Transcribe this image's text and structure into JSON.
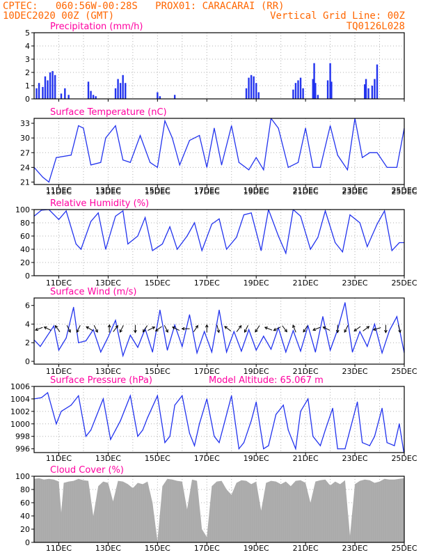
{
  "header": {
    "line1_left": "CPTEC:   060:56W-00:28S   PROX01: CARACARAI (RR)",
    "line2_left": "10DEC2020 00Z (GMT)",
    "line2_right": "Vertical Grid Line: 00Z",
    "line3_right": "TQ0126L028"
  },
  "x_axis": {
    "tick_labels": [
      "11DEC",
      "13DEC",
      "15DEC",
      "17DEC",
      "19DEC",
      "21DEC",
      "23DEC",
      "25DEC"
    ],
    "tick_days": [
      1,
      3,
      5,
      7,
      9,
      11,
      13,
      15
    ],
    "range_days": [
      0,
      15
    ]
  },
  "colors": {
    "series": "#2233ee",
    "cloud_fill": "#aaaaaa",
    "title": "#ff00a0",
    "header": "#ff6600",
    "arrow": "#000000"
  },
  "chart_data": [
    {
      "type": "bar",
      "title": "Precipitation (mm/h)",
      "ylim": [
        0,
        5
      ],
      "yticks": [
        0,
        1,
        2,
        3,
        4,
        5
      ],
      "grid": true,
      "x_days": [
        0.1,
        0.2,
        0.35,
        0.45,
        0.55,
        0.65,
        0.75,
        0.85,
        1.1,
        1.25,
        1.4,
        2.2,
        2.3,
        2.4,
        2.5,
        3.3,
        3.4,
        3.5,
        3.6,
        3.7,
        5.0,
        5.1,
        5.7,
        8.6,
        8.7,
        8.8,
        8.9,
        9.0,
        9.1,
        10.5,
        10.6,
        10.7,
        10.8,
        10.9,
        11.3,
        11.35,
        11.4,
        11.5,
        11.9,
        12.0,
        12.05,
        13.4,
        13.45,
        13.55,
        13.7,
        13.8,
        13.9
      ],
      "values": [
        0.8,
        1.2,
        0.9,
        1.7,
        1.4,
        2.0,
        2.1,
        1.8,
        0.4,
        0.8,
        0.3,
        1.3,
        0.6,
        0.3,
        0.2,
        0.8,
        1.5,
        1.2,
        1.8,
        1.2,
        0.5,
        0.2,
        0.3,
        0.8,
        1.6,
        1.8,
        1.7,
        1.2,
        0.5,
        0.7,
        1.2,
        1.4,
        1.6,
        0.8,
        1.5,
        2.7,
        1.2,
        0.3,
        1.4,
        2.7,
        1.3,
        1.1,
        1.5,
        0.8,
        1.0,
        1.5,
        2.6
      ]
    },
    {
      "type": "line",
      "title": "Surface Temperature (nC)",
      "ylim": [
        20.5,
        34
      ],
      "yticks": [
        21,
        24,
        27,
        30,
        33
      ],
      "grid": true,
      "x_days": [
        0,
        0.35,
        0.6,
        0.9,
        1.5,
        1.8,
        2.0,
        2.3,
        2.7,
        2.9,
        3.3,
        3.6,
        3.9,
        4.3,
        4.7,
        5.0,
        5.3,
        5.6,
        5.9,
        6.3,
        6.7,
        7.0,
        7.3,
        7.6,
        8.0,
        8.3,
        8.7,
        9.0,
        9.3,
        9.6,
        9.9,
        10.3,
        10.7,
        11.0,
        11.3,
        11.6,
        12.0,
        12.3,
        12.7,
        13.0,
        13.3,
        13.6,
        13.9,
        14.3,
        14.7,
        15.0
      ],
      "values": [
        24,
        22,
        21,
        26,
        26.5,
        32.5,
        32,
        24.5,
        25,
        30,
        32.5,
        25.5,
        25,
        30.5,
        25,
        24,
        33.5,
        30,
        24.5,
        29.5,
        30.5,
        24,
        32,
        24.5,
        32.5,
        25,
        23.5,
        26,
        23.5,
        34,
        32,
        24,
        25,
        32,
        24,
        24,
        32.5,
        26.5,
        23.5,
        34,
        26,
        27,
        27,
        24,
        24,
        32
      ]
    },
    {
      "type": "line",
      "title": "Relative Humidity (%)",
      "ylim": [
        0,
        100
      ],
      "yticks": [
        0,
        20,
        40,
        60,
        80,
        100
      ],
      "grid": true,
      "x_days": [
        0,
        0.3,
        0.6,
        1.0,
        1.3,
        1.7,
        1.9,
        2.3,
        2.6,
        2.9,
        3.3,
        3.6,
        3.8,
        4.2,
        4.5,
        4.8,
        5.2,
        5.5,
        5.8,
        6.2,
        6.5,
        6.8,
        7.2,
        7.5,
        7.8,
        8.2,
        8.5,
        8.8,
        9.2,
        9.5,
        9.9,
        10.2,
        10.5,
        10.8,
        11.2,
        11.5,
        11.8,
        12.2,
        12.5,
        12.8,
        13.2,
        13.5,
        13.9,
        14.2,
        14.5,
        14.8,
        15.0
      ],
      "values": [
        90,
        99,
        100,
        85,
        98,
        48,
        40,
        82,
        95,
        40,
        90,
        98,
        48,
        60,
        88,
        38,
        48,
        74,
        40,
        60,
        80,
        38,
        78,
        86,
        40,
        58,
        92,
        95,
        38,
        100,
        60,
        34,
        100,
        90,
        40,
        58,
        98,
        50,
        36,
        92,
        80,
        44,
        78,
        98,
        38,
        50,
        50
      ]
    },
    {
      "type": "line",
      "title": "Surface Wind (m/s)",
      "ylim": [
        -0.3,
        6.8
      ],
      "yticks": [
        0,
        2,
        4,
        6
      ],
      "grid": true,
      "x_days": [
        0,
        0.25,
        0.5,
        0.8,
        1.0,
        1.3,
        1.6,
        1.8,
        2.1,
        2.4,
        2.7,
        3.0,
        3.3,
        3.6,
        3.9,
        4.2,
        4.5,
        4.8,
        5.1,
        5.4,
        5.7,
        6.0,
        6.3,
        6.6,
        6.9,
        7.2,
        7.5,
        7.8,
        8.1,
        8.4,
        8.7,
        9.0,
        9.3,
        9.6,
        9.9,
        10.2,
        10.5,
        10.8,
        11.1,
        11.4,
        11.7,
        12.0,
        12.3,
        12.6,
        12.9,
        13.2,
        13.5,
        13.8,
        14.1,
        14.4,
        14.7,
        15.0
      ],
      "values": [
        2.3,
        1.6,
        2.6,
        3.8,
        1.2,
        2.5,
        5.8,
        2.0,
        2.2,
        3.4,
        1.0,
        2.6,
        4.4,
        0.6,
        2.8,
        1.5,
        3.5,
        1.0,
        5.5,
        1.2,
        3.9,
        1.6,
        5.0,
        0.9,
        3.2,
        1.0,
        5.5,
        1.0,
        3.2,
        1.1,
        3.4,
        1.2,
        2.7,
        1.3,
        3.6,
        1.0,
        3.3,
        1.1,
        3.8,
        1.0,
        4.8,
        1.2,
        3.4,
        6.3,
        1.0,
        3.2,
        1.6,
        4.0,
        0.9,
        3.3,
        4.8,
        0.9
      ]
    },
    {
      "type": "line",
      "title": "Surface Pressure (hPa)",
      "ylim": [
        995.4,
        1006
      ],
      "yticks": [
        996,
        998,
        1000,
        1002,
        1004,
        1006
      ],
      "grid": true,
      "annotation": "Model Altitude: 65.067 m",
      "x_days": [
        0,
        0.3,
        0.55,
        0.9,
        1.1,
        1.5,
        1.8,
        2.1,
        2.3,
        2.5,
        2.8,
        3.1,
        3.3,
        3.5,
        3.9,
        4.2,
        4.4,
        4.6,
        5.0,
        5.3,
        5.5,
        5.7,
        6.0,
        6.3,
        6.5,
        6.7,
        7.0,
        7.3,
        7.5,
        7.7,
        8.0,
        8.3,
        8.5,
        8.8,
        9.0,
        9.3,
        9.5,
        9.8,
        10.1,
        10.3,
        10.6,
        10.8,
        11.1,
        11.3,
        11.6,
        11.8,
        12.1,
        12.3,
        12.6,
        12.8,
        13.1,
        13.3,
        13.6,
        13.8,
        14.1,
        14.3,
        14.6,
        14.8,
        15.0
      ],
      "values": [
        1004,
        1004.2,
        1005,
        1000,
        1002,
        1003,
        1004.5,
        998,
        999,
        1001,
        1004,
        997.5,
        999,
        1000.5,
        1004.5,
        998,
        999,
        1001,
        1004.5,
        997,
        998,
        1003,
        1004.5,
        998.5,
        996.5,
        1000,
        1004,
        998,
        997,
        1000,
        1004.5,
        996,
        997,
        1000.5,
        1003.5,
        996,
        996.5,
        1001.5,
        1003,
        999,
        996,
        1002,
        1004,
        998,
        996.5,
        999,
        1002.5,
        996,
        996,
        999,
        1003.5,
        997,
        996.5,
        998,
        1002.5,
        997,
        996.5,
        1000,
        995
      ]
    },
    {
      "type": "area",
      "title": "Cloud Cover (%)",
      "ylim": [
        0,
        100
      ],
      "yticks": [
        0,
        20,
        40,
        60,
        80,
        100
      ],
      "grid": true,
      "x_days": [
        0,
        0.2,
        0.4,
        0.6,
        0.8,
        1.0,
        1.1,
        1.2,
        1.4,
        1.6,
        1.8,
        2.0,
        2.2,
        2.4,
        2.6,
        2.8,
        3.0,
        3.2,
        3.4,
        3.6,
        3.8,
        4.0,
        4.2,
        4.4,
        4.6,
        4.8,
        5.0,
        5.2,
        5.4,
        5.6,
        5.8,
        6.0,
        6.2,
        6.4,
        6.6,
        6.8,
        7.0,
        7.2,
        7.4,
        7.6,
        7.8,
        8.0,
        8.2,
        8.4,
        8.6,
        8.8,
        9.0,
        9.2,
        9.4,
        9.6,
        9.8,
        10.0,
        10.2,
        10.4,
        10.6,
        10.8,
        11.0,
        11.2,
        11.4,
        11.6,
        11.8,
        12.0,
        12.2,
        12.4,
        12.6,
        12.8,
        13.0,
        13.2,
        13.4,
        13.6,
        13.8,
        14.0,
        14.2,
        14.4,
        14.6,
        14.8,
        15.0
      ],
      "values": [
        96,
        97,
        95,
        96,
        95,
        92,
        45,
        90,
        92,
        93,
        96,
        94,
        93,
        40,
        85,
        92,
        90,
        62,
        93,
        92,
        88,
        82,
        90,
        88,
        92,
        60,
        2,
        85,
        96,
        95,
        93,
        92,
        50,
        95,
        93,
        20,
        8,
        85,
        92,
        93,
        80,
        72,
        90,
        94,
        93,
        88,
        92,
        48,
        90,
        93,
        92,
        88,
        92,
        85,
        93,
        94,
        90,
        60,
        92,
        94,
        95,
        86,
        92,
        88,
        94,
        10,
        88,
        93,
        95,
        94,
        90,
        92,
        96,
        95,
        95,
        96,
        97
      ]
    }
  ],
  "wind_vectors": {
    "x_days": [
      0.2,
      0.55,
      0.95,
      1.4,
      1.8,
      2.25,
      2.5,
      3.05,
      3.3,
      3.55,
      4.1,
      4.5,
      4.75,
      5.05,
      5.35,
      5.75,
      6.15,
      6.55,
      7.0,
      7.45,
      7.85,
      8.3,
      8.6,
      9.05,
      9.5,
      9.85,
      10.15,
      10.55,
      11.0,
      11.45,
      11.85,
      12.3,
      12.65,
      13.1,
      13.45,
      13.9,
      14.25,
      14.8
    ],
    "u": [
      -4,
      -3,
      -1.5,
      1,
      -1,
      -2.5,
      1,
      0,
      1.5,
      -1,
      0,
      -1,
      2,
      -2,
      1,
      -1,
      -2,
      1,
      0,
      0.8,
      -2,
      1.5,
      -1,
      -1,
      -2.5,
      -3,
      1.5,
      -1,
      -1,
      -2.5,
      -3,
      0,
      -1,
      -3.5,
      2,
      -2.5,
      0,
      0.5
    ],
    "v": [
      -1.5,
      1.5,
      2,
      -2,
      -2,
      1.5,
      -2,
      2.5,
      2,
      -2,
      -2,
      -1.5,
      1,
      -1.5,
      -2,
      0.5,
      0,
      1.5,
      3,
      -3,
      1.5,
      2,
      -2,
      -1.5,
      1,
      -1.5,
      -2,
      2.5,
      -1.5,
      -1,
      1.5,
      -3,
      -2,
      -2.5,
      1.5,
      -0.8,
      -3,
      -2
    ]
  }
}
